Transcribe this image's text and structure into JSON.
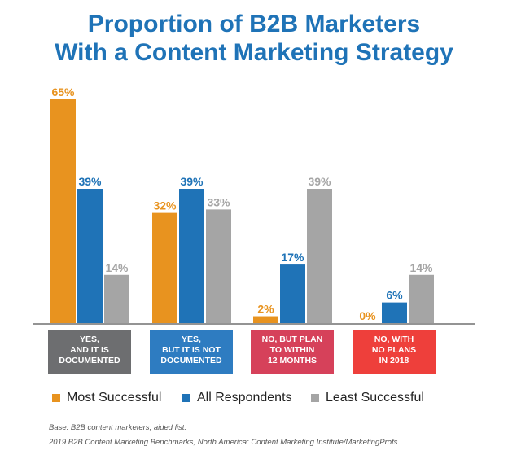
{
  "title_line1": "Proportion of B2B Marketers",
  "title_line2": "With a Content Marketing Strategy",
  "colors": {
    "title": "#1f73b7",
    "most_successful": "#e8931f",
    "all_respondents": "#1f73b7",
    "least_successful": "#a5a5a5"
  },
  "chart_data": {
    "type": "bar",
    "title": "Proportion of B2B Marketers With a Content Marketing Strategy",
    "categories": [
      "YES, AND IT IS DOCUMENTED",
      "YES, BUT IT IS NOT DOCUMENTED",
      "NO, BUT PLAN TO WITHIN 12 MONTHS",
      "NO, WITH NO PLANS IN 2018"
    ],
    "category_label_lines": [
      [
        "YES,",
        "AND IT IS",
        "DOCUMENTED"
      ],
      [
        "YES,",
        "BUT IT IS NOT",
        "DOCUMENTED"
      ],
      [
        "NO, BUT PLAN",
        "TO WITHIN",
        "12 MONTHS"
      ],
      [
        "NO, WITH",
        "NO PLANS",
        "IN 2018"
      ]
    ],
    "category_colors": [
      "#6d6e70",
      "#2e7cc1",
      "#d6415a",
      "#ee3f3b"
    ],
    "series": [
      {
        "name": "Most Successful",
        "values": [
          65,
          32,
          2,
          0
        ],
        "labels": [
          "65%",
          "32%",
          "2%",
          "0%"
        ],
        "color": "#e8931f"
      },
      {
        "name": "All Respondents",
        "values": [
          39,
          39,
          17,
          6
        ],
        "labels": [
          "39%",
          "39%",
          "17%",
          "6%"
        ],
        "color": "#1f73b7"
      },
      {
        "name": "Least Successful",
        "values": [
          14,
          33,
          39,
          14
        ],
        "labels": [
          "14%",
          "33%",
          "39%",
          "14%"
        ],
        "color": "#a5a5a5"
      }
    ],
    "ylim": [
      0,
      65
    ],
    "legend_position": "bottom",
    "grid": false
  },
  "legend": {
    "items": [
      "Most Successful",
      "All Respondents",
      "Least Successful"
    ]
  },
  "footnotes": {
    "line1": "Base: B2B content marketers; aided list.",
    "line2": "2019 B2B Content Marketing Benchmarks, North America: Content Marketing Institute/MarketingProfs"
  }
}
